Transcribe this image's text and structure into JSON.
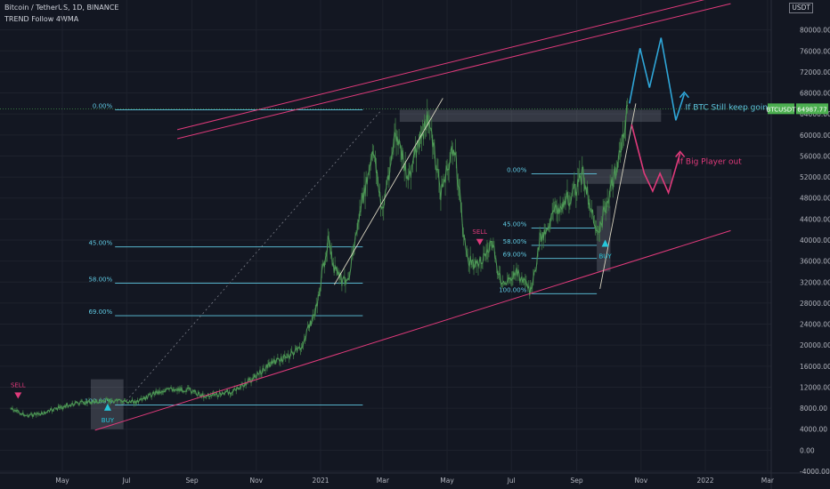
{
  "header": {
    "title": "Bitcoin / TetherUS, 1D, BINANCE",
    "indicator": "TREND Follow 4WMA",
    "currency": "USDT"
  },
  "chart_data": {
    "type": "line",
    "title": "Bitcoin / TetherUS, 1D, BINANCE",
    "xlabel": "",
    "ylabel": "",
    "ylim": [
      -4000,
      84000
    ],
    "grid": true,
    "y_ticks": [
      "80000.00",
      "76000.00",
      "72000.00",
      "68000.00",
      "64000.00",
      "60000.00",
      "56000.00",
      "52000.00",
      "48000.00",
      "44000.00",
      "40000.00",
      "36000.00",
      "32000.00",
      "28000.00",
      "24000.00",
      "20000.00",
      "16000.00",
      "12000.00",
      "8000.00",
      "4000.00",
      "0.00",
      "-4000.00"
    ],
    "x_ticks": [
      "May",
      "Jul",
      "Sep",
      "Nov",
      "2021",
      "Mar",
      "May",
      "Jul",
      "Sep",
      "Nov",
      "2022",
      "Mar"
    ],
    "series": [
      {
        "values": [
          {
            "x": "2020-03-13",
            "y": 7800
          },
          {
            "x": "2020-03-28",
            "y": 6600
          },
          {
            "x": "2020-04-13",
            "y": 7000
          },
          {
            "x": "2020-04-28",
            "y": 8100
          },
          {
            "x": "2020-05-13",
            "y": 8900
          },
          {
            "x": "2020-05-28",
            "y": 9200
          },
          {
            "x": "2020-06-13",
            "y": 9400
          },
          {
            "x": "2020-06-28",
            "y": 9300
          },
          {
            "x": "2020-07-13",
            "y": 9200
          },
          {
            "x": "2020-07-28",
            "y": 11000
          },
          {
            "x": "2020-08-13",
            "y": 11600
          },
          {
            "x": "2020-08-28",
            "y": 11500
          },
          {
            "x": "2020-09-13",
            "y": 10300
          },
          {
            "x": "2020-09-28",
            "y": 10700
          },
          {
            "x": "2020-10-13",
            "y": 11400
          },
          {
            "x": "2020-10-28",
            "y": 13500
          },
          {
            "x": "2020-11-13",
            "y": 16300
          },
          {
            "x": "2020-11-28",
            "y": 17700
          },
          {
            "x": "2020-12-13",
            "y": 19200
          },
          {
            "x": "2020-12-28",
            "y": 27000
          },
          {
            "x": "2021-01-08",
            "y": 40000
          },
          {
            "x": "2021-01-13",
            "y": 35000
          },
          {
            "x": "2021-01-22",
            "y": 32000
          },
          {
            "x": "2021-01-28",
            "y": 33500
          },
          {
            "x": "2021-02-08",
            "y": 46000
          },
          {
            "x": "2021-02-21",
            "y": 57000
          },
          {
            "x": "2021-02-28",
            "y": 45000
          },
          {
            "x": "2021-03-13",
            "y": 60000
          },
          {
            "x": "2021-03-25",
            "y": 52000
          },
          {
            "x": "2021-04-13",
            "y": 63500
          },
          {
            "x": "2021-04-25",
            "y": 49000
          },
          {
            "x": "2021-05-08",
            "y": 58000
          },
          {
            "x": "2021-05-19",
            "y": 37000
          },
          {
            "x": "2021-05-28",
            "y": 35000
          },
          {
            "x": "2021-06-13",
            "y": 39000
          },
          {
            "x": "2021-06-22",
            "y": 31000
          },
          {
            "x": "2021-07-05",
            "y": 34000
          },
          {
            "x": "2021-07-20",
            "y": 29800
          },
          {
            "x": "2021-07-28",
            "y": 40000
          },
          {
            "x": "2021-08-13",
            "y": 46000
          },
          {
            "x": "2021-08-28",
            "y": 48500
          },
          {
            "x": "2021-09-07",
            "y": 52500
          },
          {
            "x": "2021-09-21",
            "y": 40700
          },
          {
            "x": "2021-10-01",
            "y": 48000
          },
          {
            "x": "2021-10-13",
            "y": 57000
          },
          {
            "x": "2021-10-20",
            "y": 66000
          }
        ]
      }
    ],
    "last_price": {
      "symbol": "BTCUSDT",
      "value": "64987.77"
    },
    "fib_left": {
      "labels": [
        "0.00%",
        "45.00%",
        "58.00%",
        "69.00%",
        "100.00%"
      ],
      "prices": [
        64800,
        38700,
        31800,
        25600,
        8600
      ]
    },
    "fib_right": {
      "labels": [
        "0.00%",
        "45.00%",
        "58.00%",
        "69.00%",
        "100.00%"
      ],
      "prices": [
        52600,
        42300,
        39000,
        36500,
        29800
      ]
    },
    "signals": [
      {
        "type": "SELL",
        "label": "SELL",
        "x": "2020-03-20",
        "price": 10500
      },
      {
        "type": "BUY",
        "label": "BUY",
        "x": "2020-06-13",
        "price": 8200
      },
      {
        "type": "SELL",
        "label": "SELL",
        "x": "2021-06-01",
        "price": 39700
      },
      {
        "type": "BUY",
        "label": "BUY",
        "x": "2021-09-28",
        "price": 39400
      }
    ],
    "annotations": [
      {
        "text": "If BTC Still keep going",
        "color": "#5fc9e2"
      },
      {
        "text": "If Big Player out",
        "color": "#e03a7b"
      }
    ]
  },
  "colors": {
    "background": "#131722",
    "candle": "#3f7a46",
    "channel": "#e03a7b",
    "fib": "#5fc9e2",
    "bull_path": "#2fa6d8",
    "bear_path": "#e03a7b",
    "last_price": "#4caf50"
  }
}
